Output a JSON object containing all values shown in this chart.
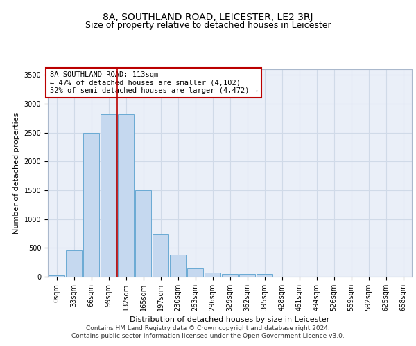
{
  "title": "8A, SOUTHLAND ROAD, LEICESTER, LE2 3RJ",
  "subtitle": "Size of property relative to detached houses in Leicester",
  "xlabel": "Distribution of detached houses by size in Leicester",
  "ylabel": "Number of detached properties",
  "categories": [
    "0sqm",
    "33sqm",
    "66sqm",
    "99sqm",
    "132sqm",
    "165sqm",
    "197sqm",
    "230sqm",
    "263sqm",
    "296sqm",
    "329sqm",
    "362sqm",
    "395sqm",
    "428sqm",
    "461sqm",
    "494sqm",
    "526sqm",
    "559sqm",
    "592sqm",
    "625sqm",
    "658sqm"
  ],
  "bar_values": [
    30,
    470,
    2500,
    2820,
    2820,
    1500,
    750,
    390,
    140,
    70,
    50,
    50,
    50,
    0,
    0,
    0,
    0,
    0,
    0,
    0,
    0
  ],
  "bar_color": "#c5d8ef",
  "bar_edge_color": "#6aaad4",
  "grid_color": "#d0dae8",
  "background_color": "#eaeff8",
  "annotation_text": "8A SOUTHLAND ROAD: 113sqm\n← 47% of detached houses are smaller (4,102)\n52% of semi-detached houses are larger (4,472) →",
  "annotation_box_color": "#ffffff",
  "annotation_box_edge_color": "#bb0000",
  "annotation_text_color": "#000000",
  "vline_x": 3.5,
  "vline_color": "#bb0000",
  "ylim": [
    0,
    3600
  ],
  "yticks": [
    0,
    500,
    1000,
    1500,
    2000,
    2500,
    3000,
    3500
  ],
  "footer_line1": "Contains HM Land Registry data © Crown copyright and database right 2024.",
  "footer_line2": "Contains public sector information licensed under the Open Government Licence v3.0.",
  "title_fontsize": 10,
  "subtitle_fontsize": 9,
  "axis_label_fontsize": 8,
  "tick_fontsize": 7,
  "annotation_fontsize": 7.5,
  "footer_fontsize": 6.5
}
